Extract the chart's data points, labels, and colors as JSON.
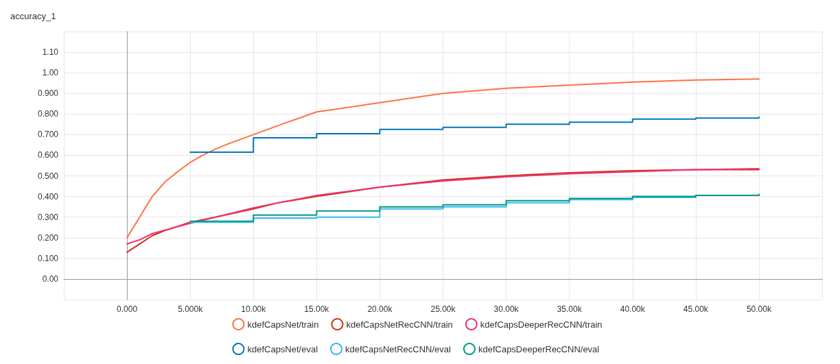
{
  "chart_data": {
    "type": "line",
    "title": "accuracy_1",
    "xlim": [
      -5000,
      55000
    ],
    "ylim": [
      -0.1,
      1.2
    ],
    "xticks": [
      {
        "value": 0,
        "label": "0.000"
      },
      {
        "value": 5000,
        "label": "5.000k"
      },
      {
        "value": 10000,
        "label": "10.00k"
      },
      {
        "value": 15000,
        "label": "15.00k"
      },
      {
        "value": 20000,
        "label": "20.00k"
      },
      {
        "value": 25000,
        "label": "25.00k"
      },
      {
        "value": 30000,
        "label": "30.00k"
      },
      {
        "value": 35000,
        "label": "35.00k"
      },
      {
        "value": 40000,
        "label": "40.00k"
      },
      {
        "value": 45000,
        "label": "45.00k"
      },
      {
        "value": 50000,
        "label": "50.00k"
      }
    ],
    "yticks": [
      {
        "value": 0,
        "label": "0.00"
      },
      {
        "value": 0.1,
        "label": "0.100"
      },
      {
        "value": 0.2,
        "label": "0.200"
      },
      {
        "value": 0.3,
        "label": "0.300"
      },
      {
        "value": 0.4,
        "label": "0.400"
      },
      {
        "value": 0.5,
        "label": "0.500"
      },
      {
        "value": 0.6,
        "label": "0.600"
      },
      {
        "value": 0.7,
        "label": "0.700"
      },
      {
        "value": 0.8,
        "label": "0.800"
      },
      {
        "value": 0.9,
        "label": "0.900"
      },
      {
        "value": 1.0,
        "label": "1.00"
      },
      {
        "value": 1.1,
        "label": "1.10"
      }
    ],
    "grid": true,
    "legend": "bottom",
    "line_style": "solid",
    "series": [
      {
        "name": "kdefCapsNet/train",
        "color": "#ff7043",
        "x": [
          0,
          1000,
          2000,
          3000,
          4000,
          5000,
          6000,
          7000,
          8000,
          10000,
          12000,
          15000,
          20000,
          25000,
          30000,
          35000,
          40000,
          45000,
          50000
        ],
        "values": [
          0.2,
          0.3,
          0.4,
          0.47,
          0.52,
          0.565,
          0.6,
          0.63,
          0.655,
          0.7,
          0.745,
          0.81,
          0.855,
          0.9,
          0.925,
          0.94,
          0.955,
          0.965,
          0.97
        ]
      },
      {
        "name": "kdefCapsNetRecCNN/train",
        "color": "#cc3311",
        "x": [
          0,
          1000,
          2000,
          3000,
          5000,
          7000,
          10000,
          12000,
          15000,
          20000,
          25000,
          30000,
          35000,
          40000,
          45000,
          50000
        ],
        "values": [
          0.13,
          0.17,
          0.21,
          0.235,
          0.275,
          0.3,
          0.34,
          0.37,
          0.4,
          0.445,
          0.48,
          0.5,
          0.515,
          0.525,
          0.53,
          0.53
        ]
      },
      {
        "name": "kdefCapsDeeperRecCNN/train",
        "color": "#ee3377",
        "x": [
          0,
          1000,
          2000,
          5000,
          7000,
          10000,
          12000,
          15000,
          20000,
          25000,
          30000,
          35000,
          40000,
          45000,
          50000
        ],
        "values": [
          0.17,
          0.19,
          0.22,
          0.27,
          0.3,
          0.345,
          0.37,
          0.405,
          0.445,
          0.475,
          0.495,
          0.51,
          0.52,
          0.53,
          0.535
        ]
      },
      {
        "name": "kdefCapsNet/eval",
        "color": "#0077bb",
        "type": "step",
        "x": [
          5000,
          10000,
          15000,
          20000,
          25000,
          30000,
          35000,
          40000,
          45000,
          50000
        ],
        "values": [
          0.615,
          0.685,
          0.705,
          0.725,
          0.735,
          0.75,
          0.76,
          0.775,
          0.78,
          0.785
        ]
      },
      {
        "name": "kdefCapsNetRecCNN/eval",
        "color": "#33bbee",
        "type": "step",
        "x": [
          5000,
          10000,
          15000,
          20000,
          25000,
          30000,
          35000,
          40000,
          45000,
          50000
        ],
        "values": [
          0.275,
          0.295,
          0.3,
          0.34,
          0.35,
          0.37,
          0.385,
          0.395,
          0.405,
          0.41
        ]
      },
      {
        "name": "kdefCapsDeeperRecCNN/eval",
        "color": "#009988",
        "type": "step",
        "x": [
          5000,
          10000,
          15000,
          20000,
          25000,
          30000,
          35000,
          40000,
          45000,
          50000
        ],
        "values": [
          0.28,
          0.31,
          0.33,
          0.35,
          0.36,
          0.38,
          0.39,
          0.4,
          0.405,
          0.41
        ]
      }
    ]
  }
}
